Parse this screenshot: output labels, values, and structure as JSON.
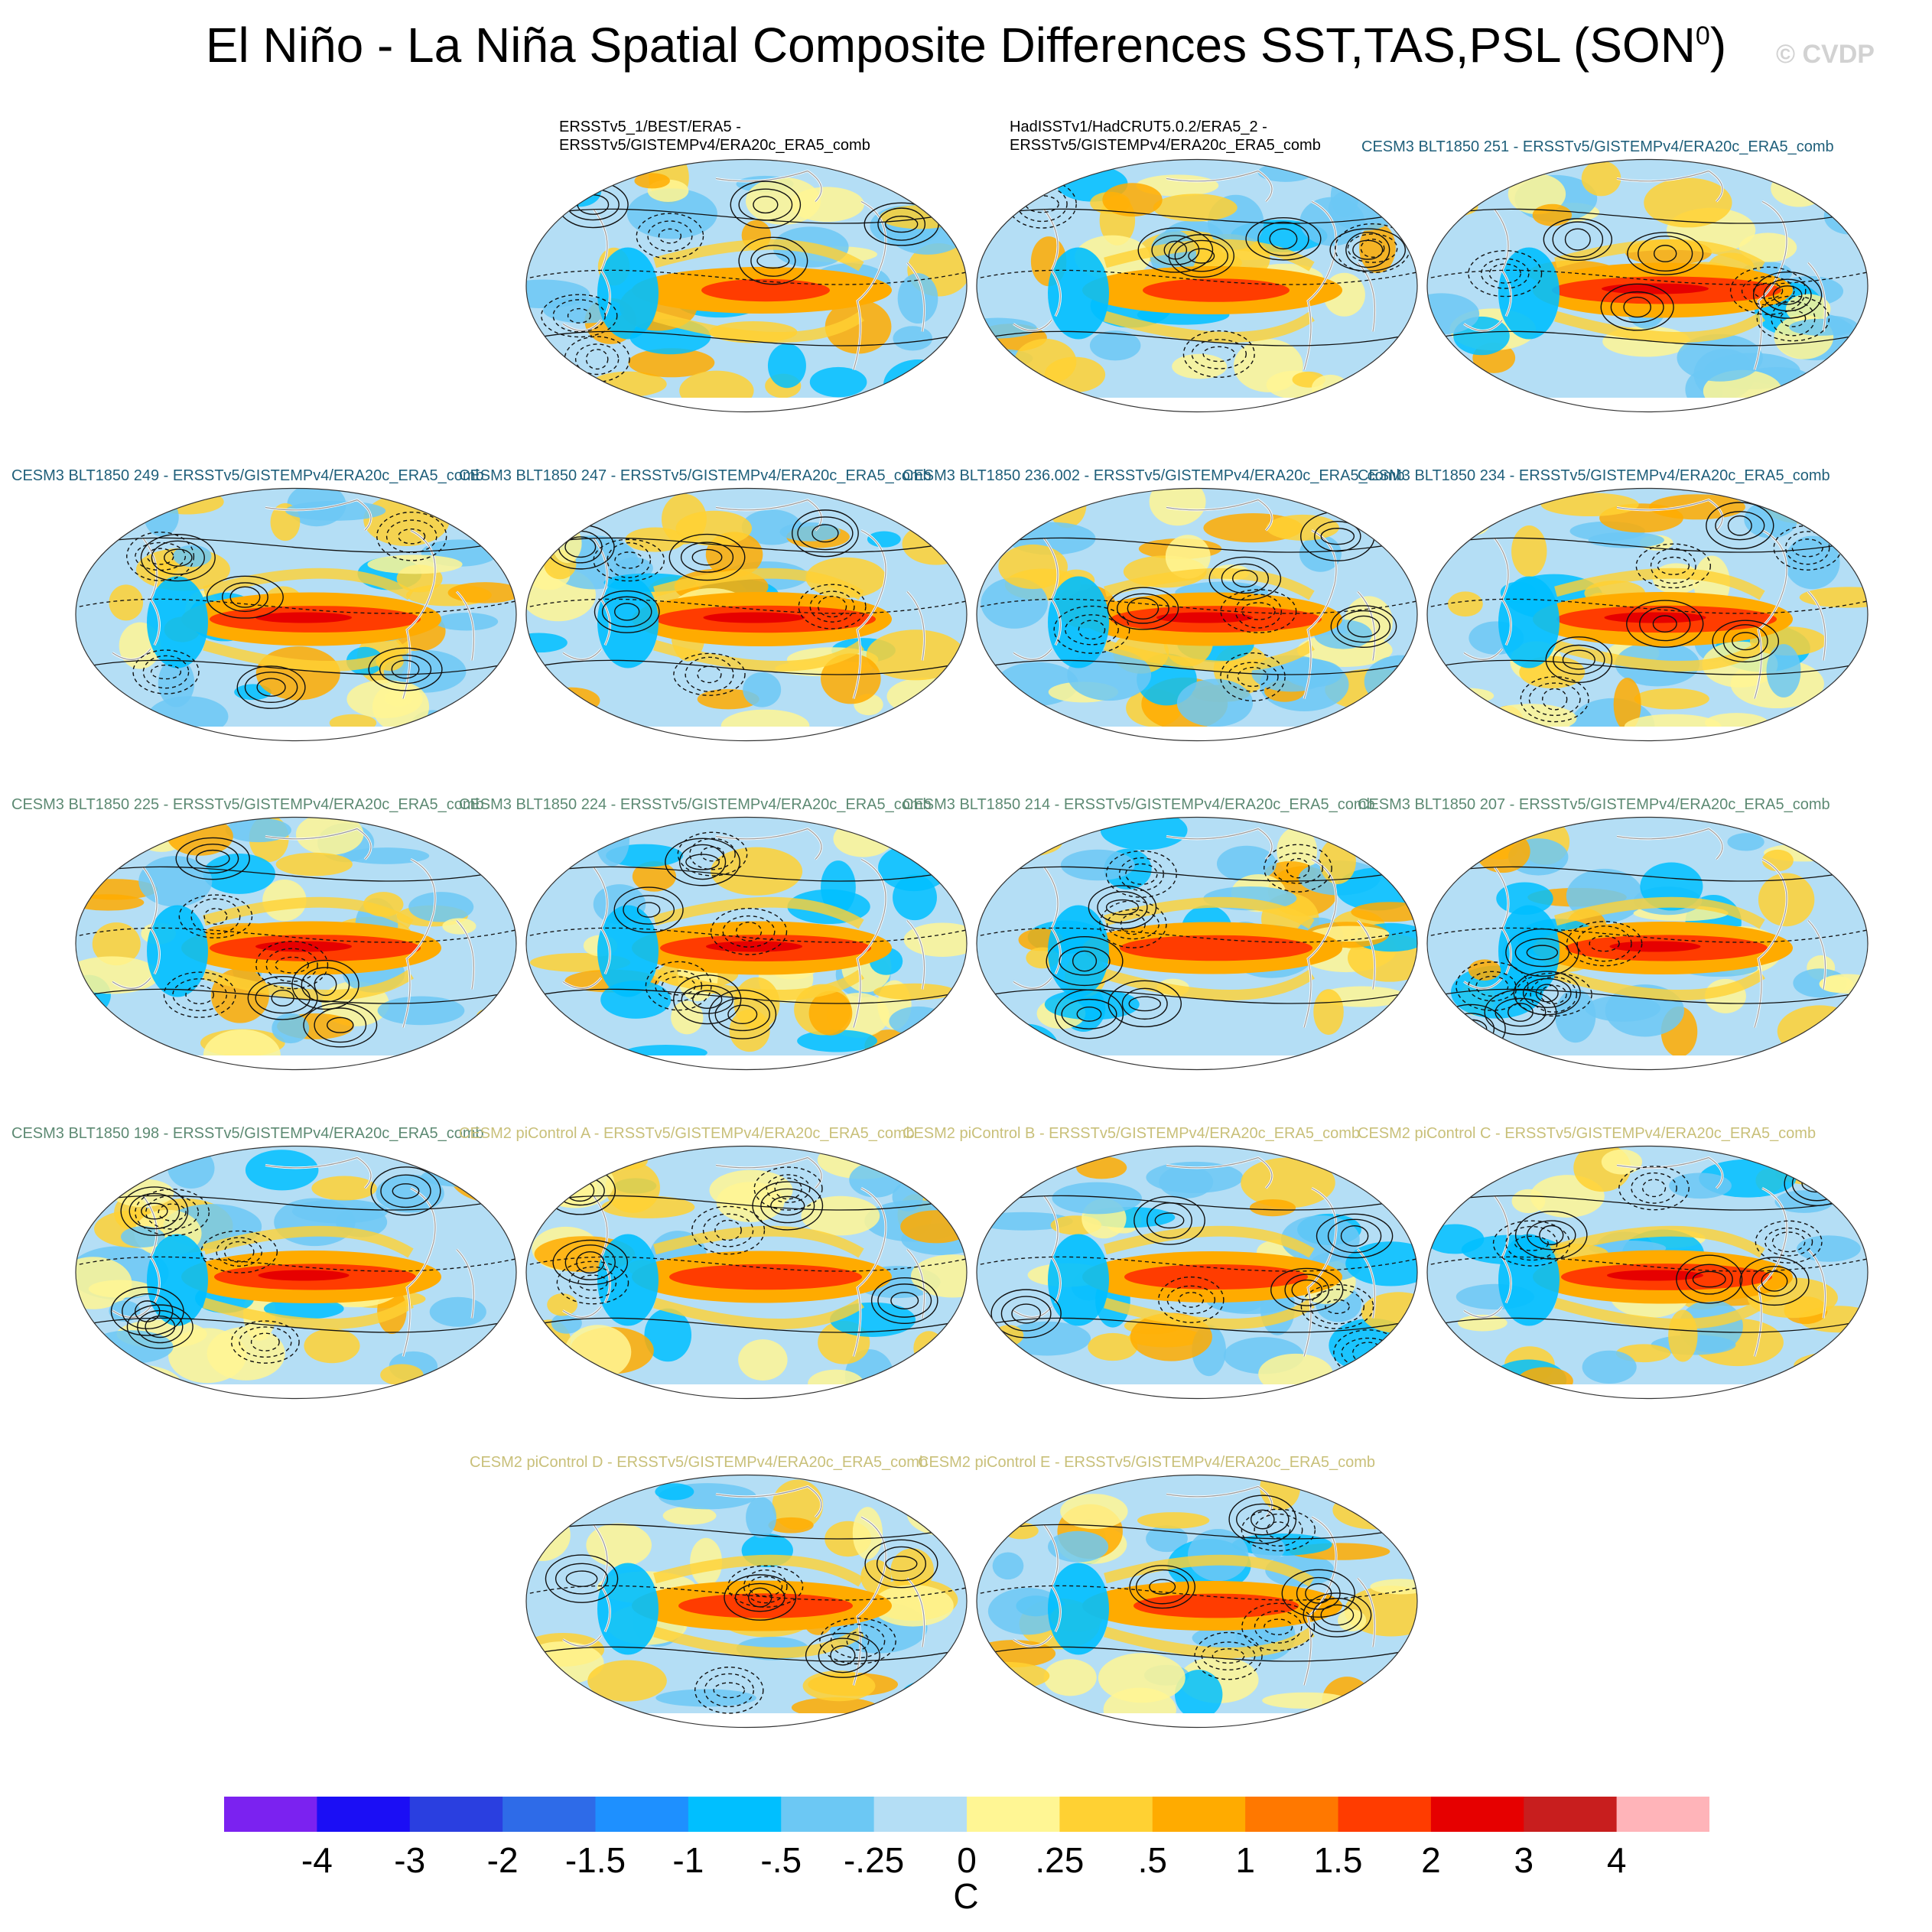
{
  "title": "El Niño - La Niña Spatial Composite Differences SST,TAS,PSL (SON",
  "title_superscript": "0",
  "title_close": ")",
  "watermark": "© CVDP",
  "panels": [
    {
      "label_lines": [
        "ERSSTv5_1/BEST/ERA5 -",
        "ERSSTv5/GISTEMPv4/ERA20c_ERA5_comb"
      ],
      "color": "#000000",
      "strength": 0.45
    },
    {
      "label_lines": [
        "HadISSTv1/HadCRUT5.0.2/ERA5_2 -",
        "ERSSTv5/GISTEMPv4/ERA20c_ERA5_comb"
      ],
      "color": "#000000",
      "strength": 0.55
    },
    {
      "label_lines": [
        "CESM3 BLT1850 251 - ERSSTv5/GISTEMPv4/ERA20c_ERA5_comb"
      ],
      "color": "#1f5f7a",
      "strength": 1.0
    },
    {
      "label_lines": [
        "CESM3 BLT1850 249 - ERSSTv5/GISTEMPv4/ERA20c_ERA5_comb"
      ],
      "color": "#1f5f7a",
      "strength": 0.9
    },
    {
      "label_lines": [
        "CESM3 BLT1850 247 - ERSSTv5/GISTEMPv4/ERA20c_ERA5_comb"
      ],
      "color": "#1f5f7a",
      "strength": 0.95
    },
    {
      "label_lines": [
        "CESM3 BLT1850 236.002 - ERSSTv5/GISTEMPv4/ERA20c_ERA5_comb"
      ],
      "color": "#1f5f7a",
      "strength": 0.9
    },
    {
      "label_lines": [
        "CESM3 BLT1850 234 - ERSSTv5/GISTEMPv4/ERA20c_ERA5_comb"
      ],
      "color": "#1f5f7a",
      "strength": 0.95
    },
    {
      "label_lines": [
        "CESM3 BLT1850 225 - ERSSTv5/GISTEMPv4/ERA20c_ERA5_comb"
      ],
      "color": "#5d8a73",
      "strength": 0.9
    },
    {
      "label_lines": [
        "CESM3 BLT1850 224 - ERSSTv5/GISTEMPv4/ERA20c_ERA5_comb"
      ],
      "color": "#5d8a73",
      "strength": 0.9
    },
    {
      "label_lines": [
        "CESM3 BLT1850 214 - ERSSTv5/GISTEMPv4/ERA20c_ERA5_comb"
      ],
      "color": "#5d8a73",
      "strength": 0.8
    },
    {
      "label_lines": [
        "CESM3 BLT1850 207 - ERSSTv5/GISTEMPv4/ERA20c_ERA5_comb"
      ],
      "color": "#5d8a73",
      "strength": 0.85
    },
    {
      "label_lines": [
        "CESM3 BLT1850 198 - ERSSTv5/GISTEMPv4/ERA20c_ERA5_comb"
      ],
      "color": "#5d8a73",
      "strength": 0.85
    },
    {
      "label_lines": [
        "CESM2 piControl A - ERSSTv5/GISTEMPv4/ERA20c_ERA5_comb"
      ],
      "color": "#c9c07a",
      "strength": 0.8
    },
    {
      "label_lines": [
        "CESM2 piControl B - ERSSTv5/GISTEMPv4/ERA20c_ERA5_comb"
      ],
      "color": "#c9c07a",
      "strength": 0.75
    },
    {
      "label_lines": [
        "CESM2 piControl C - ERSSTv5/GISTEMPv4/ERA20c_ERA5_comb"
      ],
      "color": "#c9c07a",
      "strength": 0.9
    },
    {
      "label_lines": [
        "CESM2 piControl D - ERSSTv5/GISTEMPv4/ERA20c_ERA5_comb"
      ],
      "color": "#c9c07a",
      "strength": 0.7
    },
    {
      "label_lines": [
        "CESM2 piControl E - ERSSTv5/GISTEMPv4/ERA20c_ERA5_comb"
      ],
      "color": "#c9c07a",
      "strength": 0.65
    }
  ],
  "colorbar": {
    "colors": [
      "#7b22f0",
      "#1b0ef5",
      "#2a3fe0",
      "#2e6be8",
      "#1e90ff",
      "#00bfff",
      "#6cc8f4",
      "#b4def5",
      "#fff694",
      "#ffd133",
      "#ffab00",
      "#ff7800",
      "#ff3c00",
      "#e60000",
      "#c81e1e",
      "#ffb4b9"
    ],
    "tick_labels": [
      "-4",
      "-3",
      "-2",
      "-1.5",
      "-1",
      "-.5",
      "-.25",
      "0",
      ".25",
      ".5",
      "1",
      "1.5",
      "2",
      "3",
      "4"
    ],
    "units": "C"
  }
}
